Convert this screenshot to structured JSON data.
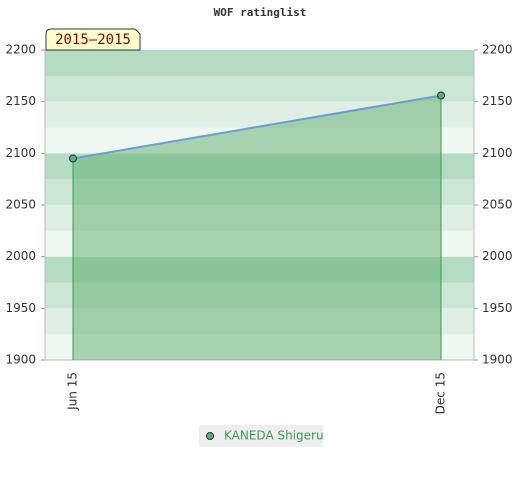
{
  "chart_data": {
    "type": "area",
    "title": "WOF ratinglist",
    "badge": "2015–2015",
    "categories": [
      "Jun 15",
      "Dec 15"
    ],
    "series": [
      {
        "name": "KANEDA Shigeru",
        "color": "#5fae6e",
        "line_color": "#6a9fd0",
        "values": [
          2095,
          2156
        ]
      }
    ],
    "ylim": [
      1900,
      2200
    ],
    "yticks": [
      1900,
      1950,
      2000,
      2050,
      2100,
      2150,
      2200
    ],
    "right_axis": true
  }
}
